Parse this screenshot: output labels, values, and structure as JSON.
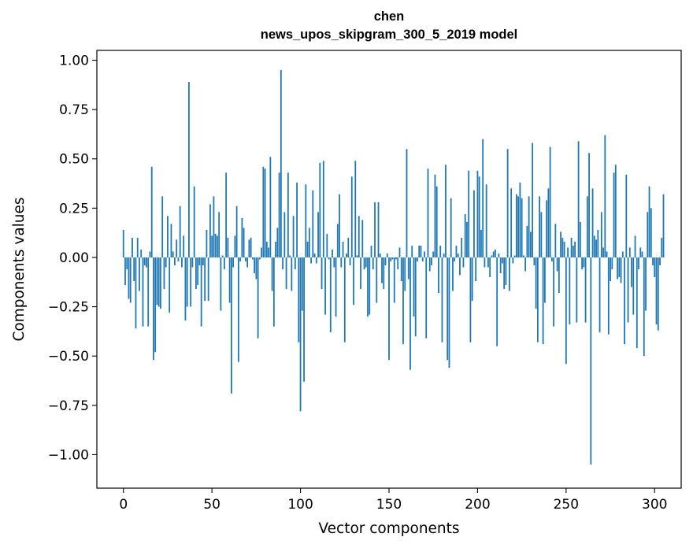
{
  "chart_data": {
    "type": "bar",
    "title_line1": "chen",
    "title_line2": "news_upos_skipgram_300_5_2019 model",
    "xlabel": "Vector components",
    "ylabel": "Components values",
    "xlim": [
      -15,
      315
    ],
    "ylim": [
      -1.17,
      1.05
    ],
    "xticks": [
      0,
      50,
      100,
      150,
      200,
      250,
      300
    ],
    "xtick_labels": [
      "0",
      "50",
      "100",
      "150",
      "200",
      "250",
      "300"
    ],
    "yticks": [
      1.0,
      0.75,
      0.5,
      0.25,
      0.0,
      -0.25,
      -0.5,
      -0.75,
      -1.0
    ],
    "ytick_labels": [
      "1.00",
      "0.75",
      "0.50",
      "0.25",
      "0.00",
      "−0.25",
      "−0.50",
      "−0.75",
      "−1.00"
    ],
    "bar_color": "#1f77b4",
    "values": [
      0.14,
      -0.14,
      -0.06,
      -0.21,
      -0.23,
      0.1,
      -0.12,
      -0.36,
      0.1,
      -0.17,
      0.04,
      -0.35,
      -0.04,
      -0.05,
      -0.35,
      0.03,
      0.46,
      -0.52,
      -0.48,
      -0.24,
      -0.25,
      -0.26,
      0.31,
      -0.16,
      -0.05,
      0.21,
      -0.28,
      0.17,
      0.03,
      -0.04,
      0.09,
      -0.02,
      0.26,
      -0.05,
      0.11,
      -0.32,
      -0.25,
      0.89,
      -0.25,
      -0.05,
      0.36,
      -0.16,
      -0.14,
      -0.04,
      -0.35,
      -0.04,
      -0.22,
      0.14,
      -0.22,
      0.27,
      0.11,
      0.31,
      0.12,
      0.11,
      0.23,
      -0.27,
      0.01,
      -0.06,
      0.43,
      0.1,
      -0.23,
      -0.69,
      -0.05,
      0.11,
      0.26,
      -0.53,
      -0.02,
      0.2,
      0.15,
      -0.02,
      -0.05,
      0.09,
      0.1,
      -0.01,
      -0.08,
      -0.11,
      -0.41,
      -0.01,
      0.05,
      0.46,
      0.45,
      0.08,
      0.05,
      0.51,
      -0.17,
      -0.35,
      0.08,
      0.15,
      0.43,
      0.95,
      -0.06,
      0.23,
      -0.16,
      0.43,
      0.01,
      -0.17,
      0.21,
      -0.06,
      0.38,
      -0.43,
      -0.78,
      -0.27,
      -0.63,
      0.37,
      0.08,
      0.15,
      -0.03,
      0.34,
      0.02,
      -0.03,
      0.23,
      0.48,
      -0.16,
      0.49,
      -0.29,
      0.12,
      -0.01,
      -0.38,
      0.04,
      -0.05,
      -0.3,
      0.17,
      0.32,
      -0.05,
      0.08,
      -0.43,
      0.02,
      0.1,
      -0.04,
      0.41,
      -0.24,
      0.49,
      0.01,
      0.21,
      -0.16,
      0.19,
      -0.06,
      -0.05,
      -0.3,
      -0.29,
      0.06,
      -0.06,
      0.28,
      -0.23,
      0.28,
      0.02,
      -0.13,
      -0.16,
      -0.04,
      0.02,
      -0.52,
      -0.02,
      -0.01,
      -0.23,
      -0.01,
      -0.06,
      0.05,
      -0.12,
      -0.44,
      -0.17,
      0.55,
      -0.11,
      -0.57,
      0.06,
      -0.3,
      -0.4,
      -0.02,
      0.06,
      0.06,
      -0.02,
      0.03,
      -0.41,
      0.45,
      -0.07,
      -0.04,
      0.03,
      0.42,
      0.36,
      -0.18,
      0.06,
      -0.43,
      0.02,
      0.47,
      -0.52,
      -0.56,
      0.3,
      -0.17,
      -0.02,
      0.06,
      0.02,
      -0.09,
      0.1,
      -0.05,
      0.22,
      0.18,
      0.44,
      -0.43,
      -0.22,
      0.34,
      -0.12,
      0.44,
      0.41,
      0.14,
      0.6,
      -0.05,
      0.37,
      -0.05,
      -0.1,
      0.01,
      0.03,
      0.04,
      -0.45,
      0.02,
      -0.08,
      -0.03,
      -0.16,
      -0.14,
      0.55,
      -0.17,
      0.35,
      -0.03,
      0.01,
      0.32,
      0.31,
      0.38,
      0.3,
      0.01,
      -0.07,
      0.16,
      0.31,
      0.13,
      0.58,
      -0.04,
      -0.26,
      -0.43,
      0.31,
      0.23,
      -0.44,
      -0.23,
      0.29,
      0.35,
      0.56,
      -0.02,
      -0.35,
      0.17,
      -0.07,
      -0.18,
      0.13,
      0.1,
      0.08,
      -0.54,
      0.05,
      -0.34,
      0.1,
      0.06,
      0.08,
      -0.33,
      0.59,
      0.18,
      -0.06,
      -0.05,
      -0.33,
      0.31,
      0.53,
      -1.05,
      0.35,
      0.11,
      0.09,
      0.14,
      -0.38,
      0.23,
      0.05,
      0.62,
      0.03,
      -0.39,
      -0.12,
      -0.06,
      0.43,
      0.47,
      -0.11,
      -0.1,
      -0.13,
      0.03,
      -0.44,
      0.42,
      -0.33,
      0.05,
      -0.15,
      -0.29,
      0.11,
      -0.46,
      -0.06,
      0.05,
      0.03,
      -0.5,
      -0.27,
      0.23,
      0.36,
      0.25,
      -0.04,
      -0.1,
      -0.34,
      -0.37,
      -0.04,
      0.1,
      0.32
    ]
  }
}
